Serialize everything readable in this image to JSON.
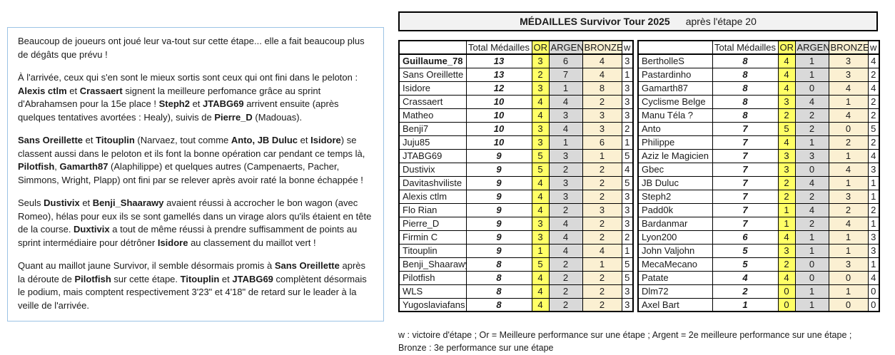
{
  "title": {
    "main": "MÉDAILLES Survivor Tour 2025",
    "suffix": "après l'étape 20"
  },
  "commentary": {
    "paragraphs": [
      [
        {
          "t": "Beaucoup de joueurs ont joué leur va-tout sur cette étape... elle a fait beaucoup plus de dégâts que prévu !",
          "b": false
        }
      ],
      [
        {
          "t": "À l'arrivée, ceux qui s'en sont le mieux sortis sont ceux qui ont fini dans le peloton : ",
          "b": false
        },
        {
          "t": "Alexis ctlm",
          "b": true
        },
        {
          "t": " et ",
          "b": false
        },
        {
          "t": "Crassaert",
          "b": true
        },
        {
          "t": " signent la meilleure perfomance grâce au sprint d'Abrahamsen pour la 15e place ! ",
          "b": false
        },
        {
          "t": "Steph2",
          "b": true
        },
        {
          "t": " et ",
          "b": false
        },
        {
          "t": "JTABG69",
          "b": true
        },
        {
          "t": " arrivent ensuite (après quelques tentatives avortées : Healy), suivis de ",
          "b": false
        },
        {
          "t": "Pierre_D",
          "b": true
        },
        {
          "t": " (Madouas).",
          "b": false
        }
      ],
      [
        {
          "t": "Sans Oreillette",
          "b": true
        },
        {
          "t": " et ",
          "b": false
        },
        {
          "t": "Titouplin",
          "b": true
        },
        {
          "t": " (Narvaez, tout comme ",
          "b": false
        },
        {
          "t": "Anto, JB Duluc",
          "b": true
        },
        {
          "t": " et ",
          "b": false
        },
        {
          "t": "Isidore",
          "b": true
        },
        {
          "t": ") se classent aussi dans le peloton et ils font la bonne opération car pendant ce temps là, ",
          "b": false
        },
        {
          "t": "Pilotfish",
          "b": true
        },
        {
          "t": ", ",
          "b": false
        },
        {
          "t": "Gamarth87",
          "b": true
        },
        {
          "t": " (Alaphilippe) et quelques autres (Campenaerts, Pacher, Simmons, Wright, Plapp) ont fini par se relever après avoir raté la bonne échappée !",
          "b": false
        }
      ],
      [
        {
          "t": "Seuls ",
          "b": false
        },
        {
          "t": "Dustivix",
          "b": true
        },
        {
          "t": " et ",
          "b": false
        },
        {
          "t": "Benji_Shaarawy",
          "b": true
        },
        {
          "t": " avaient réussi à accrocher le bon wagon (avec Romeo), hélas pour eux ils se sont gamellés dans un virage alors qu'ils étaient en tête de la course. ",
          "b": false
        },
        {
          "t": "Duxtivix",
          "b": true
        },
        {
          "t": " a tout de même réussi à prendre suffisamment de points au sprint intermédiaire pour détrôner ",
          "b": false
        },
        {
          "t": "Isidore",
          "b": true
        },
        {
          "t": " au classement du maillot vert !",
          "b": false
        }
      ],
      [
        {
          "t": "Quant au maillot jaune Survivor, il semble désormais promis à ",
          "b": false
        },
        {
          "t": "Sans Oreillette",
          "b": true
        },
        {
          "t": " après la déroute de ",
          "b": false
        },
        {
          "t": "Pilotfish",
          "b": true
        },
        {
          "t": " sur cette étape. ",
          "b": false
        },
        {
          "t": "Titouplin",
          "b": true
        },
        {
          "t": " et ",
          "b": false
        },
        {
          "t": "JTABG69",
          "b": true
        },
        {
          "t": " complètent désormais le podium, mais comptent respectivement 3'23\" et 4'18\" de retard sur le leader à la veille de l'arrivée.",
          "b": false
        }
      ]
    ]
  },
  "medal_tables": {
    "headers": [
      "",
      "Total Médailles",
      "OR",
      "ARGENT",
      "BRONZE",
      "w"
    ],
    "left": {
      "rows": [
        {
          "name": "Guillaume_78",
          "bold": true,
          "total": 13,
          "or": 3,
          "argent": 6,
          "bronze": 4,
          "w": 3
        },
        {
          "name": "Sans Oreillette",
          "bold": false,
          "total": 13,
          "or": 2,
          "argent": 7,
          "bronze": 4,
          "w": 1
        },
        {
          "name": "Isidore",
          "bold": false,
          "total": 12,
          "or": 3,
          "argent": 1,
          "bronze": 8,
          "w": 3
        },
        {
          "name": "Crassaert",
          "bold": false,
          "total": 10,
          "or": 4,
          "argent": 4,
          "bronze": 2,
          "w": 3
        },
        {
          "name": "Matheo",
          "bold": false,
          "total": 10,
          "or": 4,
          "argent": 3,
          "bronze": 3,
          "w": 3
        },
        {
          "name": "Benji7",
          "bold": false,
          "total": 10,
          "or": 3,
          "argent": 4,
          "bronze": 3,
          "w": 2
        },
        {
          "name": "Juju85",
          "bold": false,
          "total": 10,
          "or": 3,
          "argent": 1,
          "bronze": 6,
          "w": 1
        },
        {
          "name": "JTABG69",
          "bold": false,
          "total": 9,
          "or": 5,
          "argent": 3,
          "bronze": 1,
          "w": 5
        },
        {
          "name": "Dustivix",
          "bold": false,
          "total": 9,
          "or": 5,
          "argent": 2,
          "bronze": 2,
          "w": 4
        },
        {
          "name": "Davitashviliste",
          "bold": false,
          "total": 9,
          "or": 4,
          "argent": 3,
          "bronze": 2,
          "w": 5
        },
        {
          "name": "Alexis ctlm",
          "bold": false,
          "total": 9,
          "or": 4,
          "argent": 3,
          "bronze": 2,
          "w": 3
        },
        {
          "name": "Flo Rian",
          "bold": false,
          "total": 9,
          "or": 4,
          "argent": 2,
          "bronze": 3,
          "w": 3
        },
        {
          "name": "Pierre_D",
          "bold": false,
          "total": 9,
          "or": 3,
          "argent": 4,
          "bronze": 2,
          "w": 3
        },
        {
          "name": "Firmin C",
          "bold": false,
          "total": 9,
          "or": 3,
          "argent": 4,
          "bronze": 2,
          "w": 2
        },
        {
          "name": "Titouplin",
          "bold": false,
          "total": 9,
          "or": 1,
          "argent": 4,
          "bronze": 4,
          "w": 1
        },
        {
          "name": "Benji_Shaarawy",
          "bold": false,
          "total": 8,
          "or": 5,
          "argent": 2,
          "bronze": 1,
          "w": 5
        },
        {
          "name": "Pilotfish",
          "bold": false,
          "total": 8,
          "or": 4,
          "argent": 2,
          "bronze": 2,
          "w": 5
        },
        {
          "name": "WLS",
          "bold": false,
          "total": 8,
          "or": 4,
          "argent": 2,
          "bronze": 2,
          "w": 3
        },
        {
          "name": "Yugoslaviafans",
          "bold": false,
          "total": 8,
          "or": 4,
          "argent": 2,
          "bronze": 2,
          "w": 3
        }
      ]
    },
    "right": {
      "rows": [
        {
          "name": "BertholleS",
          "bold": false,
          "total": 8,
          "or": 4,
          "argent": 1,
          "bronze": 3,
          "w": 4
        },
        {
          "name": "Pastardinho",
          "bold": false,
          "total": 8,
          "or": 4,
          "argent": 1,
          "bronze": 3,
          "w": 2
        },
        {
          "name": "Gamarth87",
          "bold": false,
          "total": 8,
          "or": 4,
          "argent": 0,
          "bronze": 4,
          "w": 4
        },
        {
          "name": "Cyclisme Belge",
          "bold": false,
          "total": 8,
          "or": 3,
          "argent": 4,
          "bronze": 1,
          "w": 2
        },
        {
          "name": "Manu Téla ?",
          "bold": false,
          "total": 8,
          "or": 2,
          "argent": 2,
          "bronze": 4,
          "w": 2
        },
        {
          "name": "Anto",
          "bold": false,
          "total": 7,
          "or": 5,
          "argent": 2,
          "bronze": 0,
          "w": 5
        },
        {
          "name": "Philippe",
          "bold": false,
          "total": 7,
          "or": 4,
          "argent": 1,
          "bronze": 2,
          "w": 2
        },
        {
          "name": "Aziz le Magicien",
          "bold": false,
          "total": 7,
          "or": 3,
          "argent": 3,
          "bronze": 1,
          "w": 4
        },
        {
          "name": "Gbec",
          "bold": false,
          "total": 7,
          "or": 3,
          "argent": 0,
          "bronze": 4,
          "w": 3
        },
        {
          "name": "JB Duluc",
          "bold": false,
          "total": 7,
          "or": 2,
          "argent": 4,
          "bronze": 1,
          "w": 1
        },
        {
          "name": "Steph2",
          "bold": false,
          "total": 7,
          "or": 2,
          "argent": 2,
          "bronze": 3,
          "w": 1
        },
        {
          "name": "Padd0k",
          "bold": false,
          "total": 7,
          "or": 1,
          "argent": 4,
          "bronze": 2,
          "w": 2
        },
        {
          "name": "Bardanmar",
          "bold": false,
          "total": 7,
          "or": 1,
          "argent": 2,
          "bronze": 4,
          "w": 1
        },
        {
          "name": "Lyon200",
          "bold": false,
          "total": 6,
          "or": 4,
          "argent": 1,
          "bronze": 1,
          "w": 3
        },
        {
          "name": "John Valjohn",
          "bold": false,
          "total": 5,
          "or": 3,
          "argent": 1,
          "bronze": 1,
          "w": 3
        },
        {
          "name": "MecaMecano",
          "bold": false,
          "total": 5,
          "or": 2,
          "argent": 0,
          "bronze": 3,
          "w": 1
        },
        {
          "name": "Patate",
          "bold": false,
          "total": 4,
          "or": 4,
          "argent": 0,
          "bronze": 0,
          "w": 4
        },
        {
          "name": "Dlm72",
          "bold": false,
          "total": 2,
          "or": 0,
          "argent": 1,
          "bronze": 1,
          "w": 0
        },
        {
          "name": "Axel Bart",
          "bold": false,
          "total": 1,
          "or": 0,
          "argent": 1,
          "bronze": 0,
          "w": 0
        }
      ]
    }
  },
  "footnote": {
    "line1": "w : victoire d'étape ; Or = Meilleure performance sur une étape ; Argent = 2e meilleure performance sur une étape ;",
    "line2": "Bronze : 3e performance sur une étape"
  },
  "colors": {
    "or_bg": "#ffff66",
    "argent_bg": "#d9d9d9",
    "bronze_bg": "#fbf0d2",
    "title_bg": "#f2f2f2",
    "panel_border": "#9cc3e5"
  }
}
